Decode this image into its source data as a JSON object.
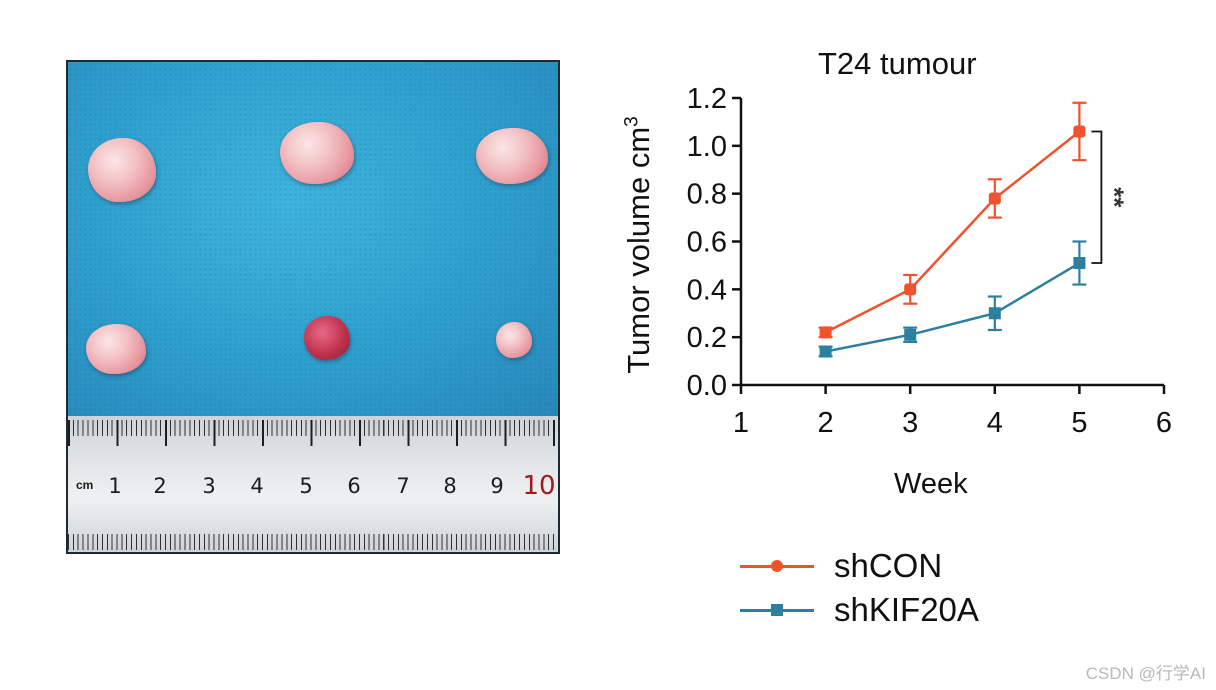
{
  "photo": {
    "ruler": {
      "unit": "cm",
      "labels": [
        "1",
        "2",
        "3",
        "4",
        "5",
        "6",
        "7",
        "8",
        "9",
        "10"
      ]
    }
  },
  "chart_data": {
    "type": "line",
    "title": "T24 tumour",
    "xlabel": "Week",
    "ylabel": "Tumor volume cm",
    "ylabel_superscript": "3",
    "xlim": [
      1,
      6
    ],
    "ylim": [
      0,
      1.2
    ],
    "xticks": [
      "1",
      "2",
      "3",
      "4",
      "5",
      "6"
    ],
    "yticks": [
      "0.0",
      "0.2",
      "0.4",
      "0.6",
      "0.8",
      "1.0",
      "1.2"
    ],
    "series": [
      {
        "name": "shCON",
        "color": "#f0522d",
        "marker": "circle",
        "x": [
          2,
          3,
          4,
          5
        ],
        "values": [
          0.22,
          0.4,
          0.78,
          1.06
        ],
        "errors": [
          0.02,
          0.06,
          0.08,
          0.12
        ]
      },
      {
        "name": "shKIF20A",
        "color": "#2d7fa0",
        "marker": "square",
        "x": [
          2,
          3,
          4,
          5
        ],
        "values": [
          0.14,
          0.21,
          0.3,
          0.51
        ],
        "errors": [
          0.02,
          0.03,
          0.07,
          0.09
        ]
      }
    ],
    "significance": {
      "label": "**",
      "between": [
        "shCON",
        "shKIF20A"
      ],
      "at_x": 5
    },
    "legend_position": "bottom"
  },
  "watermark": "CSDN @行学AI"
}
